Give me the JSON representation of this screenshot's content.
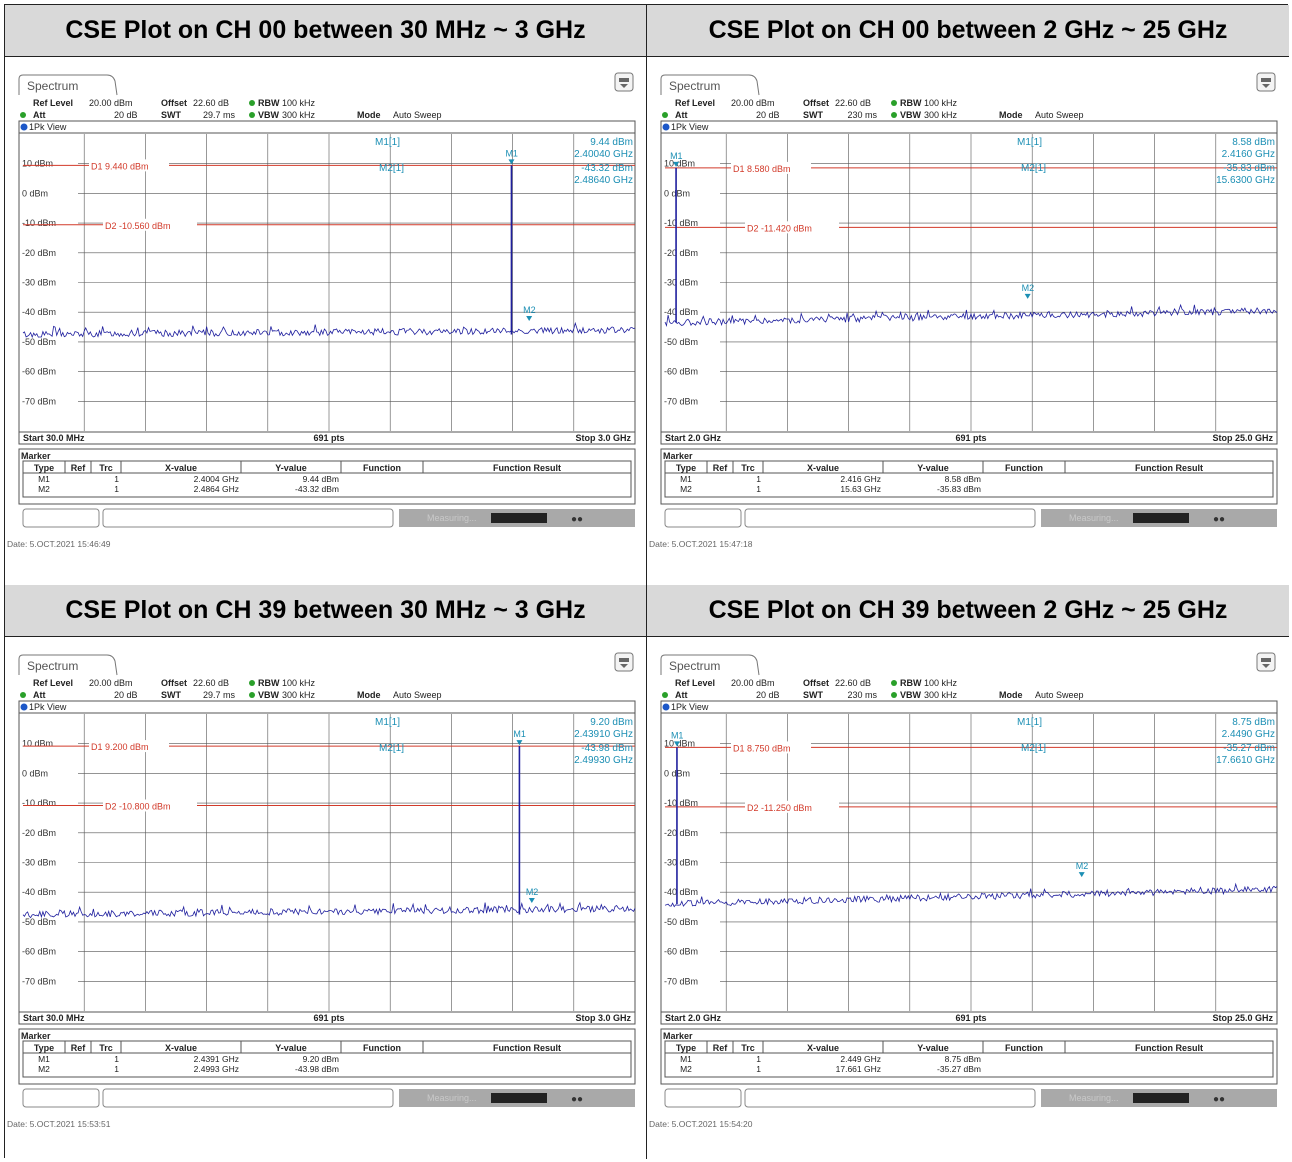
{
  "colors": {
    "trace": "#1f1f9e",
    "limit": "#d23a2a",
    "marker": "#1c8fb4",
    "grid": "#555555",
    "header_bg": "#d9d9d9"
  },
  "icons": {
    "panel": "settings-icon"
  },
  "plots": [
    {
      "title": "CSE Plot on CH 00 between 30 MHz ~ 3 GHz",
      "tab": "Spectrum",
      "settings": {
        "ref_label": "Ref Level",
        "ref_val": "20.00 dBm",
        "att_label": "Att",
        "att_val": "20 dB",
        "offset_label": "Offset",
        "offset_val": "22.60 dB",
        "swt_label": "SWT",
        "swt_val": "29.7 ms",
        "rbw_label": "RBW",
        "rbw_val": "100 kHz",
        "vbw_label": "VBW",
        "vbw_val": "300 kHz",
        "mode_label": "Mode",
        "mode_val": "Auto Sweep"
      },
      "view": "1Pk View",
      "m1_label": "M1[1]",
      "m2_label": "M2[1]",
      "m1_readout": [
        "9.44 dBm",
        "2.40040 GHz"
      ],
      "m2_readout": [
        "-43.32 dBm",
        "2.48640 GHz"
      ],
      "d1_label": "D1 9.440 dBm",
      "d2_label": "D2 -10.560 dBm",
      "start": "Start 30.0 MHz",
      "points": "691 pts",
      "stop": "Stop 3.0 GHz",
      "marker_title": "Marker",
      "table_headers": [
        "Type",
        "Ref",
        "Trc",
        "X-value",
        "Y-value",
        "Function",
        "Function Result"
      ],
      "table_rows": [
        [
          "M1",
          "",
          "1",
          "2.4004 GHz",
          "9.44 dBm",
          "",
          ""
        ],
        [
          "M2",
          "",
          "1",
          "2.4864 GHz",
          "-43.32 dBm",
          "",
          ""
        ]
      ],
      "status": "Measuring...",
      "date": "Date: 5.OCT.2021 15:46:49",
      "chart_data": {
        "type": "line",
        "x_range_ghz": [
          0.03,
          3.0
        ],
        "ylim": [
          -80,
          20
        ],
        "y_ticks": [
          "10 dBm",
          "0 dBm",
          "-10 dBm",
          "-20 dBm",
          "-30 dBm",
          "-40 dBm",
          "-50 dBm",
          "-60 dBm",
          "-70 dBm"
        ],
        "noise_floor_dbm": [
          -47.5,
          -46
        ],
        "limits": [
          9.44,
          -10.56
        ],
        "peak": {
          "x_ghz": 2.4004,
          "y_dbm": 9.44
        },
        "markers": [
          {
            "name": "M1",
            "x_ghz": 2.4004,
            "y_dbm": 9.44
          },
          {
            "name": "M2",
            "x_ghz": 2.4864,
            "y_dbm": -43.32
          }
        ]
      }
    },
    {
      "title": "CSE Plot on CH 00 between 2 GHz ~ 25 GHz",
      "tab": "Spectrum",
      "settings": {
        "ref_label": "Ref Level",
        "ref_val": "20.00 dBm",
        "att_label": "Att",
        "att_val": "20 dB",
        "offset_label": "Offset",
        "offset_val": "22.60 dB",
        "swt_label": "SWT",
        "swt_val": "230 ms",
        "rbw_label": "RBW",
        "rbw_val": "100 kHz",
        "vbw_label": "VBW",
        "vbw_val": "300 kHz",
        "mode_label": "Mode",
        "mode_val": "Auto Sweep"
      },
      "view": "1Pk View",
      "m1_label": "M1[1]",
      "m2_label": "M2[1]",
      "m1_readout": [
        "8.58 dBm",
        "2.4160 GHz"
      ],
      "m2_readout": [
        "-35.83 dBm",
        "15.6300 GHz"
      ],
      "d1_label": "D1 8.580 dBm",
      "d2_label": "D2 -11.420 dBm",
      "start": "Start 2.0 GHz",
      "points": "691 pts",
      "stop": "Stop 25.0 GHz",
      "marker_title": "Marker",
      "table_headers": [
        "Type",
        "Ref",
        "Trc",
        "X-value",
        "Y-value",
        "Function",
        "Function Result"
      ],
      "table_rows": [
        [
          "M1",
          "",
          "1",
          "2.416 GHz",
          "8.58 dBm",
          "",
          ""
        ],
        [
          "M2",
          "",
          "1",
          "15.63 GHz",
          "-35.83 dBm",
          "",
          ""
        ]
      ],
      "status": "Measuring...",
      "date": "Date: 5.OCT.2021 15:47:18",
      "chart_data": {
        "type": "line",
        "x_range_ghz": [
          2.0,
          25.0
        ],
        "ylim": [
          -80,
          20
        ],
        "y_ticks": [
          "10 dBm",
          "0 dBm",
          "-10 dBm",
          "-20 dBm",
          "-30 dBm",
          "-40 dBm",
          "-50 dBm",
          "-60 dBm",
          "-70 dBm"
        ],
        "noise_floor_dbm": [
          -43.5,
          -39.5
        ],
        "limits": [
          8.58,
          -11.42
        ],
        "peak": {
          "x_ghz": 2.416,
          "y_dbm": 8.58
        },
        "markers": [
          {
            "name": "M1",
            "x_ghz": 2.416,
            "y_dbm": 8.58
          },
          {
            "name": "M2",
            "x_ghz": 15.63,
            "y_dbm": -35.83
          }
        ]
      }
    },
    {
      "title": "CSE Plot on CH 39 between 30 MHz ~ 3 GHz",
      "tab": "Spectrum",
      "settings": {
        "ref_label": "Ref Level",
        "ref_val": "20.00 dBm",
        "att_label": "Att",
        "att_val": "20 dB",
        "offset_label": "Offset",
        "offset_val": "22.60 dB",
        "swt_label": "SWT",
        "swt_val": "29.7 ms",
        "rbw_label": "RBW",
        "rbw_val": "100 kHz",
        "vbw_label": "VBW",
        "vbw_val": "300 kHz",
        "mode_label": "Mode",
        "mode_val": "Auto Sweep"
      },
      "view": "1Pk View",
      "m1_label": "M1[1]",
      "m2_label": "M2[1]",
      "m1_readout": [
        "9.20 dBm",
        "2.43910 GHz"
      ],
      "m2_readout": [
        "-43.98 dBm",
        "2.49930 GHz"
      ],
      "d1_label": "D1 9.200 dBm",
      "d2_label": "D2 -10.800 dBm",
      "start": "Start 30.0 MHz",
      "points": "691 pts",
      "stop": "Stop 3.0 GHz",
      "marker_title": "Marker",
      "table_headers": [
        "Type",
        "Ref",
        "Trc",
        "X-value",
        "Y-value",
        "Function",
        "Function Result"
      ],
      "table_rows": [
        [
          "M1",
          "",
          "1",
          "2.4391 GHz",
          "9.20 dBm",
          "",
          ""
        ],
        [
          "M2",
          "",
          "1",
          "2.4993 GHz",
          "-43.98 dBm",
          "",
          ""
        ]
      ],
      "status": "Measuring...",
      "date": "Date: 5.OCT.2021 15:53:51",
      "chart_data": {
        "type": "line",
        "x_range_ghz": [
          0.03,
          3.0
        ],
        "ylim": [
          -80,
          20
        ],
        "y_ticks": [
          "10 dBm",
          "0 dBm",
          "-10 dBm",
          "-20 dBm",
          "-30 dBm",
          "-40 dBm",
          "-50 dBm",
          "-60 dBm",
          "-70 dBm"
        ],
        "noise_floor_dbm": [
          -47.5,
          -45.5
        ],
        "limits": [
          9.2,
          -10.8
        ],
        "peak": {
          "x_ghz": 2.4391,
          "y_dbm": 9.2
        },
        "markers": [
          {
            "name": "M1",
            "x_ghz": 2.4391,
            "y_dbm": 9.2
          },
          {
            "name": "M2",
            "x_ghz": 2.4993,
            "y_dbm": -43.98
          }
        ]
      }
    },
    {
      "title": "CSE Plot on CH 39 between 2 GHz ~ 25 GHz",
      "tab": "Spectrum",
      "settings": {
        "ref_label": "Ref Level",
        "ref_val": "20.00 dBm",
        "att_label": "Att",
        "att_val": "20 dB",
        "offset_label": "Offset",
        "offset_val": "22.60 dB",
        "swt_label": "SWT",
        "swt_val": "230 ms",
        "rbw_label": "RBW",
        "rbw_val": "100 kHz",
        "vbw_label": "VBW",
        "vbw_val": "300 kHz",
        "mode_label": "Mode",
        "mode_val": "Auto Sweep"
      },
      "view": "1Pk View",
      "m1_label": "M1[1]",
      "m2_label": "M2[1]",
      "m1_readout": [
        "8.75 dBm",
        "2.4490 GHz"
      ],
      "m2_readout": [
        "-35.27 dBm",
        "17.6610 GHz"
      ],
      "d1_label": "D1 8.750 dBm",
      "d2_label": "D2 -11.250 dBm",
      "start": "Start 2.0 GHz",
      "points": "691 pts",
      "stop": "Stop 25.0 GHz",
      "marker_title": "Marker",
      "table_headers": [
        "Type",
        "Ref",
        "Trc",
        "X-value",
        "Y-value",
        "Function",
        "Function Result"
      ],
      "table_rows": [
        [
          "M1",
          "",
          "1",
          "2.449 GHz",
          "8.75 dBm",
          "",
          ""
        ],
        [
          "M2",
          "",
          "1",
          "17.661 GHz",
          "-35.27 dBm",
          "",
          ""
        ]
      ],
      "status": "Measuring...",
      "date": "Date: 5.OCT.2021 15:54:20",
      "chart_data": {
        "type": "line",
        "x_range_ghz": [
          2.0,
          25.0
        ],
        "ylim": [
          -80,
          20
        ],
        "y_ticks": [
          "10 dBm",
          "0 dBm",
          "-10 dBm",
          "-20 dBm",
          "-30 dBm",
          "-40 dBm",
          "-50 dBm",
          "-60 dBm",
          "-70 dBm"
        ],
        "noise_floor_dbm": [
          -44,
          -39
        ],
        "limits": [
          8.75,
          -11.25
        ],
        "peak": {
          "x_ghz": 2.449,
          "y_dbm": 8.75
        },
        "markers": [
          {
            "name": "M1",
            "x_ghz": 2.449,
            "y_dbm": 8.75
          },
          {
            "name": "M2",
            "x_ghz": 17.661,
            "y_dbm": -35.27
          }
        ]
      }
    }
  ]
}
